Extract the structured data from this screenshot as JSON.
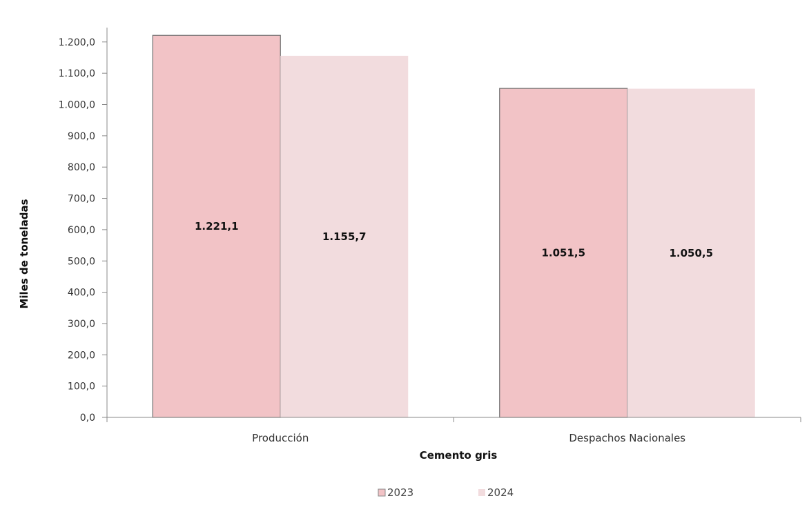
{
  "chart_data": {
    "type": "bar",
    "categories": [
      "Producción",
      "Despachos Nacionales"
    ],
    "series": [
      {
        "name": "2023",
        "values": [
          1221.1,
          1051.5
        ],
        "labels": [
          "1.221,1",
          "1.051,5"
        ],
        "color": "#f2c3c6"
      },
      {
        "name": "2024",
        "values": [
          1155.7,
          1050.5
        ],
        "labels": [
          "1.155,7",
          "1.050,5"
        ],
        "color": "#f2dcde"
      }
    ],
    "xlabel": "Cemento gris",
    "ylabel": "Miles de toneladas",
    "ylim": [
      0,
      1250
    ],
    "yticks": [
      0,
      100,
      200,
      300,
      400,
      500,
      600,
      700,
      800,
      900,
      1000,
      1100,
      1200
    ],
    "ytick_labels": [
      "0,0",
      "100,0",
      "200,0",
      "300,0",
      "400,0",
      "500,0",
      "600,0",
      "700,0",
      "800,0",
      "900,0",
      "1.000,0",
      "1.100,0",
      "1.200,0"
    ],
    "grid": false,
    "legend_position": "bottom-center"
  }
}
